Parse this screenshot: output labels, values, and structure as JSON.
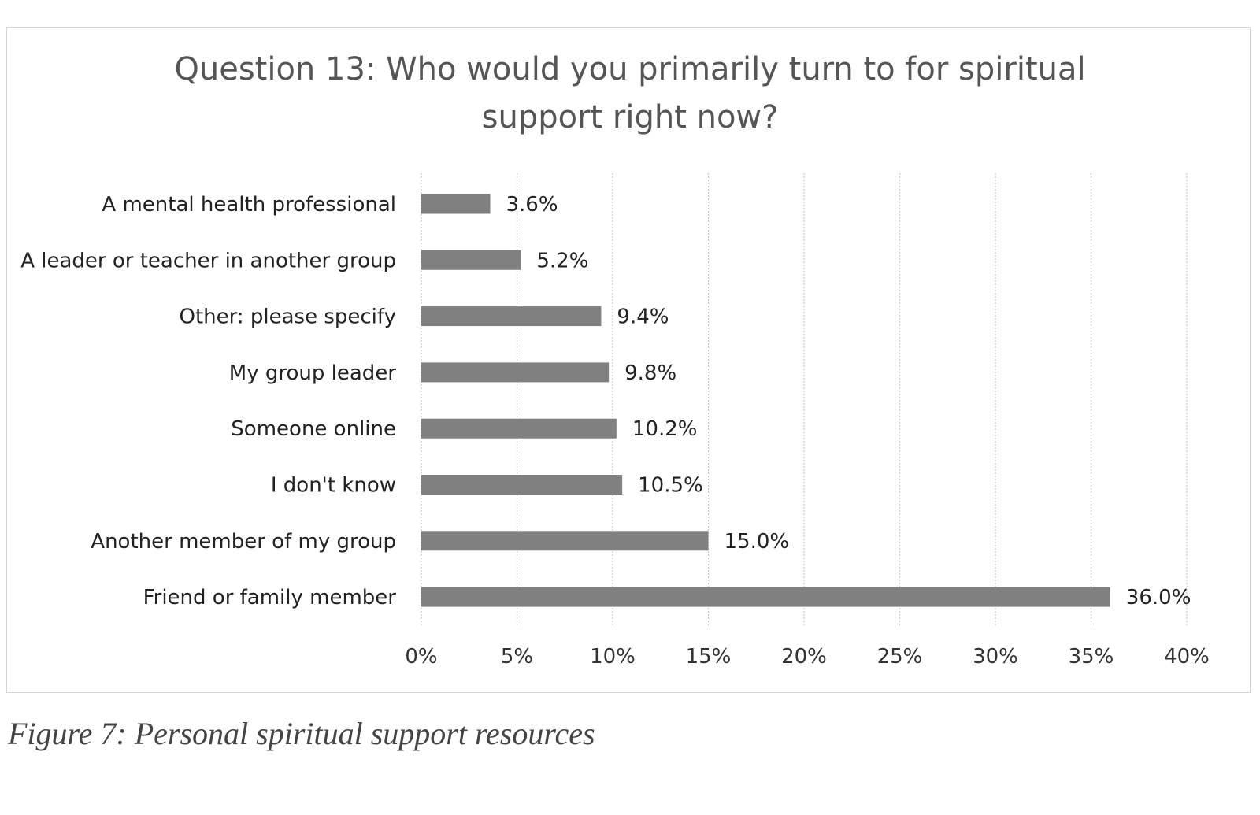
{
  "chart_data": {
    "type": "bar",
    "orientation": "horizontal",
    "title_lines": [
      "Question 13: Who would you primarily turn to for spiritual",
      "support right now?"
    ],
    "categories": [
      "A mental health professional",
      "A leader or teacher in another group",
      "Other: please specify",
      "My group leader",
      "Someone online",
      "I don't know",
      "Another member of my group",
      "Friend or family member"
    ],
    "values": [
      3.6,
      5.2,
      9.4,
      9.8,
      10.2,
      10.5,
      15.0,
      36.0
    ],
    "data_labels": [
      "3.6%",
      "5.2%",
      "9.4%",
      "9.8%",
      "10.2%",
      "10.5%",
      "15.0%",
      "36.0%"
    ],
    "xlim": [
      0,
      40
    ],
    "x_ticks": [
      0,
      5,
      10,
      15,
      20,
      25,
      30,
      35,
      40
    ],
    "x_tick_labels": [
      "0%",
      "5%",
      "10%",
      "15%",
      "20%",
      "25%",
      "30%",
      "35%",
      "40%"
    ],
    "grid": true,
    "legend": "none",
    "bar_color": "#808080"
  },
  "caption": "Figure 7: Personal spiritual support resources"
}
